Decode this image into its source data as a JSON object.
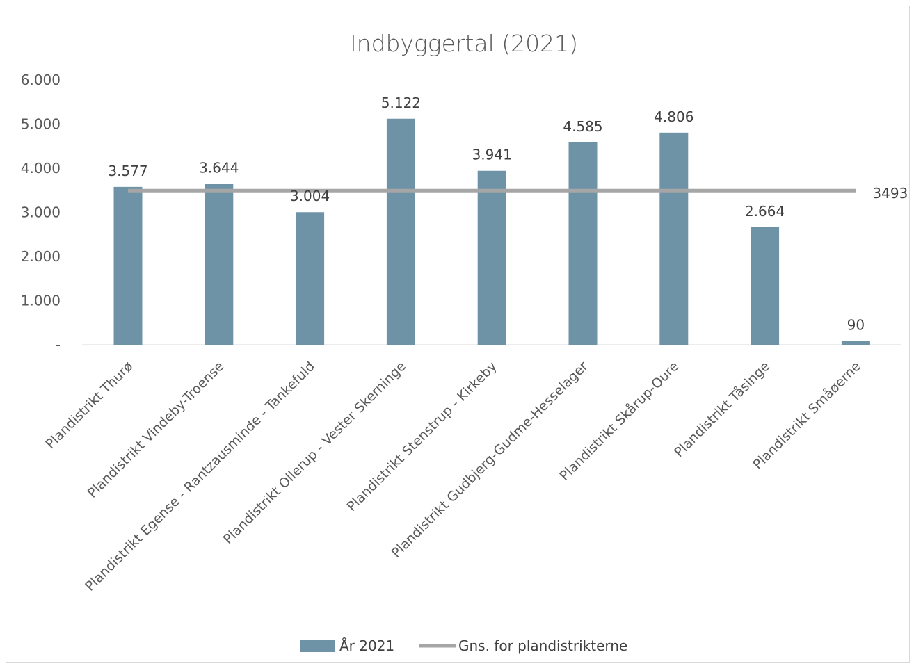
{
  "colors": {
    "bar": "#6f93a6",
    "line": "#a6a6a6",
    "axis": "#d9d9d9",
    "text": "#595959"
  },
  "chart_data": {
    "type": "bar",
    "title": "Indbyggertal (2021)",
    "categories": [
      "Plandistrikt Thurø",
      "Plandistrikt Vindeby-Troense",
      "Plandistrikt Egense - Rantzausminde - Tankefuld",
      "Plandistrikt Ollerup - Vester Skerninge",
      "Plandistrikt Stenstrup - Kirkeby",
      "Plandistrikt Gudbjerg-Gudme-Hesselager",
      "Plandistrikt Skårup-Oure",
      "Plandistrikt Tåsinge",
      "Plandistrikt Småøerne"
    ],
    "series": [
      {
        "name": "År 2021",
        "type": "bar",
        "values": [
          3577,
          3644,
          3004,
          5122,
          3941,
          4585,
          4806,
          2664,
          90
        ],
        "labels": [
          "3.577",
          "3.644",
          "3.004",
          "5.122",
          "3.941",
          "4.585",
          "4.806",
          "2.664",
          "90"
        ]
      },
      {
        "name": "Gns. for plandistrikterne",
        "type": "line",
        "value": 3493,
        "label": "3493"
      }
    ],
    "yticks": [
      {
        "value": 0,
        "label": "-"
      },
      {
        "value": 1000,
        "label": "1.000"
      },
      {
        "value": 2000,
        "label": "2.000"
      },
      {
        "value": 3000,
        "label": "3.000"
      },
      {
        "value": 4000,
        "label": "4.000"
      },
      {
        "value": 5000,
        "label": "5.000"
      },
      {
        "value": 6000,
        "label": "6.000"
      }
    ],
    "ylim": [
      0,
      6000
    ],
    "grid": false,
    "legend": "bottom"
  }
}
